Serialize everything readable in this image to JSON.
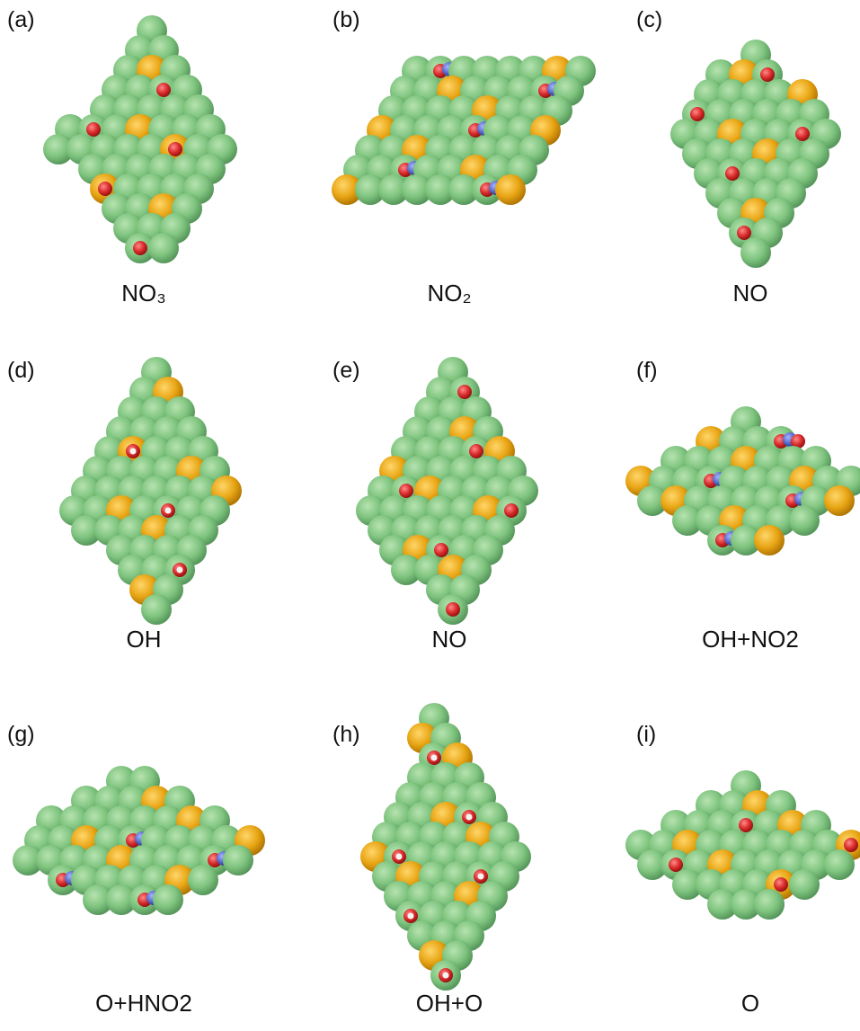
{
  "panels": [
    {
      "label": "(a)",
      "caption": "NO₃"
    },
    {
      "label": "(b)",
      "caption": "NO₂"
    },
    {
      "label": "(c)",
      "caption": "NO"
    },
    {
      "label": "(d)",
      "caption": "OH"
    },
    {
      "label": "(e)",
      "caption": "NO"
    },
    {
      "label": "(f)",
      "caption": "OH+NO2"
    },
    {
      "label": "(g)",
      "caption": "O+HNO2"
    },
    {
      "label": "(h)",
      "caption": "OH+O"
    },
    {
      "label": "(i)",
      "caption": "O"
    }
  ]
}
